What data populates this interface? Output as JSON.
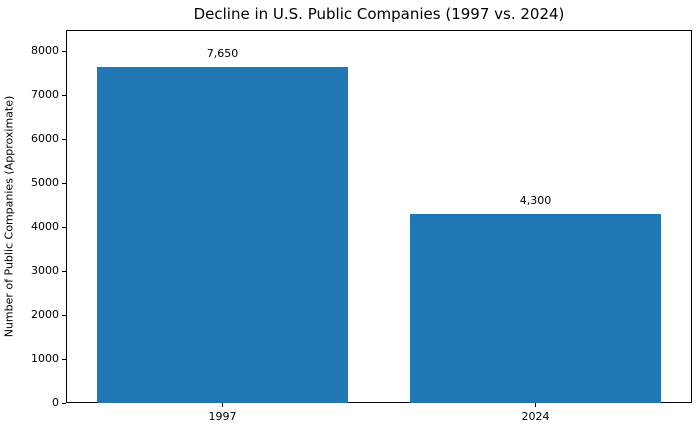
{
  "chart_data": {
    "type": "bar",
    "title": "Decline in U.S. Public Companies (1997 vs. 2024)",
    "xlabel": "",
    "ylabel": "Number of Public Companies (Approximate)",
    "categories": [
      "1997",
      "2024"
    ],
    "values": [
      7650,
      4300
    ],
    "bar_labels": [
      "7,650",
      "4,300"
    ],
    "bar_color": "#1f77b4",
    "ylim": [
      0,
      8480
    ],
    "yticks": [
      0,
      1000,
      2000,
      3000,
      4000,
      5000,
      6000,
      7000,
      8000
    ],
    "grid": false,
    "legend_position": "none"
  }
}
